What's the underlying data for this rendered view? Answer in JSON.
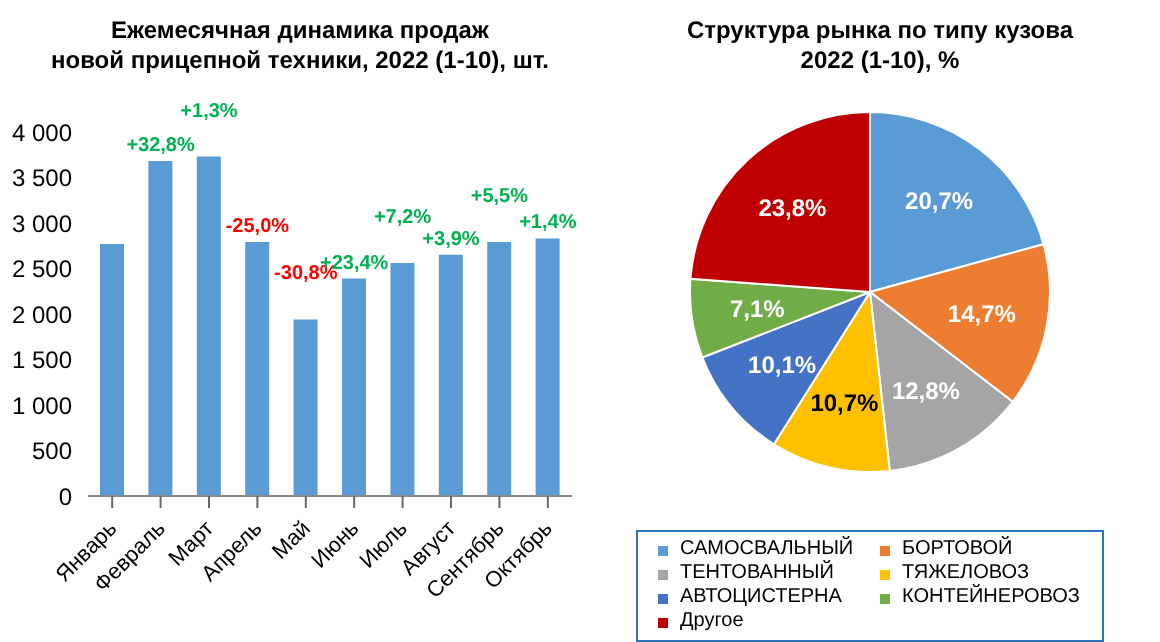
{
  "chart_data": [
    {
      "type": "bar",
      "title": "Ежемесячная динамика продаж\nновой прицепной техники, 2022 (1-10), шт.",
      "categories": [
        "Январь",
        "Февраль",
        "Март",
        "Апрель",
        "Май",
        "Июнь",
        "Июль",
        "Август",
        "Сентябрь",
        "Октябрь"
      ],
      "values": [
        2770,
        3680,
        3730,
        2790,
        1940,
        2390,
        2560,
        2650,
        2790,
        2830
      ],
      "color": "#5b9bd5",
      "ylim": [
        0,
        4000
      ],
      "yticks": [
        0,
        500,
        {
          "value": 1000,
          "label": "1 000"
        },
        {
          "value": 1500,
          "label": "1 500"
        },
        {
          "value": 2000,
          "label": "2 000"
        },
        {
          "value": 2500,
          "label": "2 500"
        },
        {
          "value": 3000,
          "label": "3 000"
        },
        {
          "value": 3500,
          "label": "3 500"
        },
        {
          "value": 4000,
          "label": "4 000"
        }
      ],
      "grid": false,
      "annotations": [
        {
          "text": "+32,8%",
          "x": "Февраль",
          "y": 3680
        },
        {
          "text": "+1,3%",
          "x": "Март",
          "y": 3730
        },
        {
          "text": "-25,0%",
          "x": "Апрель",
          "y": 2790
        },
        {
          "text": "-30,8%",
          "x": "Май",
          "y": 1940
        },
        {
          "text": "+23,4%",
          "x": "Июнь",
          "y": 2390
        },
        {
          "text": "+7,2%",
          "x": "Июль",
          "y": 2560
        },
        {
          "text": "+3,9%",
          "x": "Август",
          "y": 2650
        },
        {
          "text": "+5,5%",
          "x": "Сентябрь",
          "y": 2790
        },
        {
          "text": "+1,4%",
          "x": "Октябрь",
          "y": 2830
        }
      ]
    },
    {
      "type": "pie",
      "title": "Структура рынка по типу кузова\n2022 (1-10), %",
      "categories": [
        "САМОСВАЛЬНЫЙ",
        "БОРТОВОЙ",
        "ТЕНТОВАННЫЙ",
        "ТЯЖЕЛОВОЗ",
        "АВТОЦИСТЕРНА",
        "КОНТЕЙНЕРОВОЗ",
        "Другое"
      ],
      "values": [
        20.7,
        14.7,
        12.8,
        10.7,
        10.1,
        7.1,
        23.8
      ],
      "colors": [
        "#5b9bd5",
        "#ed7d31",
        "#a5a5a5",
        "#ffc000",
        "#4472c4",
        "#70ad47",
        "#c00000"
      ],
      "value_labels": [
        "20,7%",
        "14,7%",
        "12,8%",
        "10,7%",
        "10,1%",
        "7,1%",
        "23,8%"
      ],
      "legend": "bottom"
    }
  ]
}
